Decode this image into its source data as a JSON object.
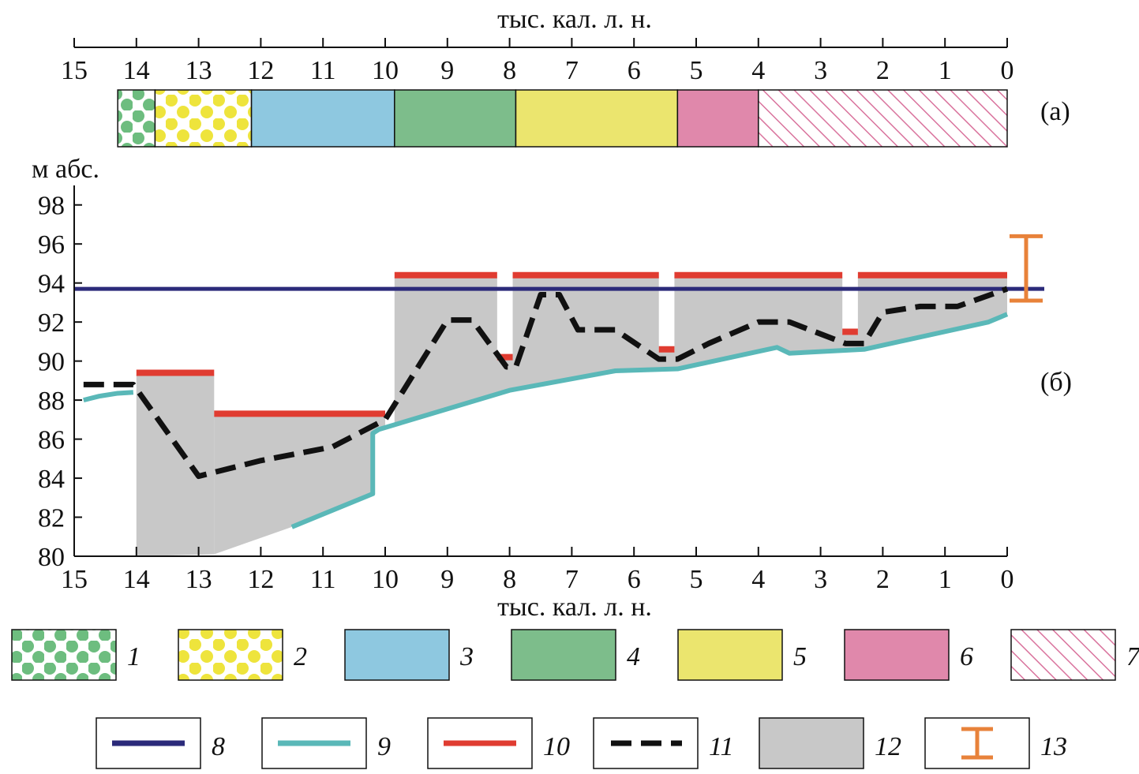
{
  "top_axis": {
    "title": "тыс. кал. л. н.",
    "ticks": [
      "15",
      "14",
      "13",
      "12",
      "11",
      "10",
      "9",
      "8",
      "7",
      "6",
      "5",
      "4",
      "3",
      "2",
      "1",
      "0"
    ],
    "values": [
      15,
      14,
      13,
      12,
      11,
      10,
      9,
      8,
      7,
      6,
      5,
      4,
      3,
      2,
      1,
      0
    ]
  },
  "panel_a": {
    "label": "(а)",
    "segments": [
      {
        "from": 14.3,
        "to": 13.7,
        "legend": "1"
      },
      {
        "from": 13.7,
        "to": 12.15,
        "legend": "2"
      },
      {
        "from": 12.15,
        "to": 9.85,
        "legend": "3"
      },
      {
        "from": 9.85,
        "to": 7.9,
        "legend": "4"
      },
      {
        "from": 7.9,
        "to": 5.3,
        "legend": "5"
      },
      {
        "from": 5.3,
        "to": 4.0,
        "legend": "6"
      },
      {
        "from": 4.0,
        "to": 0.0,
        "legend": "7"
      }
    ]
  },
  "panel_b": {
    "label": "(б)",
    "ylabel": "м абс.",
    "xlabel": "тыс. кал. л. н.",
    "y_ticks": [
      "80",
      "82",
      "84",
      "86",
      "88",
      "90",
      "92",
      "94",
      "96",
      "98"
    ]
  },
  "chart_data": {
    "type": "line",
    "x_axis": {
      "label": "тыс. кал. л. н.",
      "range": [
        15,
        0
      ],
      "reversed": true
    },
    "y_axis": {
      "label": "м абс.",
      "range": [
        80,
        99
      ]
    },
    "series": [
      {
        "legend": "8",
        "color": "#2b2a7a",
        "style": "solid",
        "x": [
          15.0,
          0.0
        ],
        "y": [
          93.7,
          93.7
        ]
      },
      {
        "legend": "9",
        "color": "#5ab8b8",
        "style": "solid",
        "segments": [
          {
            "x": [
              14.85,
              14.6,
              14.3,
              14.05
            ],
            "y": [
              88.0,
              88.2,
              88.35,
              88.4
            ]
          },
          {
            "x": [
              11.5,
              10.2,
              10.2,
              10.1,
              8.0,
              6.3,
              5.3,
              3.7,
              3.5,
              2.3,
              0.3,
              0.0
            ],
            "y": [
              81.5,
              83.2,
              86.3,
              86.5,
              88.5,
              89.5,
              89.6,
              90.7,
              90.4,
              90.6,
              92.0,
              92.4
            ]
          }
        ]
      },
      {
        "legend": "10",
        "color": "#e03c31",
        "style": "solid",
        "segments": [
          {
            "x": [
              14.0,
              12.75
            ],
            "y": [
              89.4,
              89.4
            ]
          },
          {
            "x": [
              12.75,
              10.0
            ],
            "y": [
              87.3,
              87.3
            ]
          },
          {
            "x": [
              9.85,
              8.2
            ],
            "y": [
              94.4,
              94.4
            ]
          },
          {
            "x": [
              8.2,
              7.95
            ],
            "y": [
              90.2,
              90.2
            ]
          },
          {
            "x": [
              7.95,
              5.6
            ],
            "y": [
              94.4,
              94.4
            ]
          },
          {
            "x": [
              5.6,
              5.35
            ],
            "y": [
              90.6,
              90.6
            ]
          },
          {
            "x": [
              5.35,
              2.65
            ],
            "y": [
              94.4,
              94.4
            ]
          },
          {
            "x": [
              2.65,
              2.4
            ],
            "y": [
              91.5,
              91.5
            ]
          },
          {
            "x": [
              2.4,
              0.0
            ],
            "y": [
              94.4,
              94.4
            ]
          }
        ]
      },
      {
        "legend": "11",
        "color": "#111111",
        "style": "dashed",
        "x": [
          14.85,
          14.05,
          13.0,
          12.0,
          10.85,
          10.0,
          9.0,
          8.6,
          8.05,
          7.9,
          7.5,
          7.2,
          6.9,
          6.3,
          5.6,
          5.3,
          4.8,
          4.0,
          3.5,
          2.6,
          2.3,
          2.0,
          1.4,
          0.8,
          0.0
        ],
        "y": [
          88.8,
          88.8,
          84.1,
          84.9,
          85.6,
          87.0,
          92.1,
          92.1,
          89.7,
          89.7,
          93.4,
          93.4,
          91.6,
          91.6,
          90.1,
          90.1,
          90.9,
          92.0,
          92.0,
          90.9,
          90.9,
          92.5,
          92.8,
          92.8,
          93.7
        ]
      },
      {
        "legend": "12",
        "color": "#c8c8c8",
        "style": "area",
        "polygons": [
          {
            "x": [
              14.0,
              14.0,
              12.75,
              12.75,
              14.0
            ],
            "y": [
              80.0,
              89.3,
              89.3,
              80.1,
              80.0
            ]
          },
          {
            "x": [
              12.75,
              12.75,
              10.0,
              10.0,
              10.2,
              10.2,
              11.5,
              12.75
            ],
            "y": [
              80.1,
              87.2,
              87.2,
              86.5,
              86.3,
              83.2,
              81.5,
              80.1
            ]
          },
          {
            "x": [
              9.85,
              9.85,
              8.2,
              8.2,
              7.95,
              7.95,
              5.6,
              5.6,
              5.35,
              5.35,
              2.65,
              2.65,
              2.4,
              2.4,
              0.0,
              0.0,
              0.3,
              2.3,
              3.5,
              3.7,
              5.3,
              6.3,
              8.0,
              9.85
            ],
            "y": [
              86.7,
              94.3,
              94.3,
              90.1,
              90.1,
              94.3,
              94.3,
              90.5,
              90.5,
              94.3,
              94.3,
              91.4,
              91.4,
              94.3,
              94.3,
              92.4,
              92.0,
              90.6,
              90.4,
              90.7,
              89.6,
              89.5,
              88.5,
              86.7
            ]
          }
        ]
      },
      {
        "legend": "13",
        "color": "#e8823a",
        "style": "errorbar",
        "x": 0.0,
        "y_low": 93.1,
        "y_high": 96.4
      }
    ]
  },
  "legend_row1": [
    {
      "num": "1",
      "pattern": "green-dots"
    },
    {
      "num": "2",
      "pattern": "yellow-dots"
    },
    {
      "num": "3",
      "color": "#8ec8e0"
    },
    {
      "num": "4",
      "color": "#7dbd8b"
    },
    {
      "num": "5",
      "color": "#ebe56e"
    },
    {
      "num": "6",
      "color": "#e088ab"
    },
    {
      "num": "7",
      "pattern": "pink-hatch"
    }
  ],
  "legend_row2": [
    {
      "num": "8",
      "kind": "line",
      "color": "#2b2a7a"
    },
    {
      "num": "9",
      "kind": "line",
      "color": "#5ab8b8"
    },
    {
      "num": "10",
      "kind": "line",
      "color": "#e03c31"
    },
    {
      "num": "11",
      "kind": "dashed",
      "color": "#111111"
    },
    {
      "num": "12",
      "kind": "area",
      "color": "#c8c8c8"
    },
    {
      "num": "13",
      "kind": "errorbar",
      "color": "#e8823a"
    }
  ]
}
